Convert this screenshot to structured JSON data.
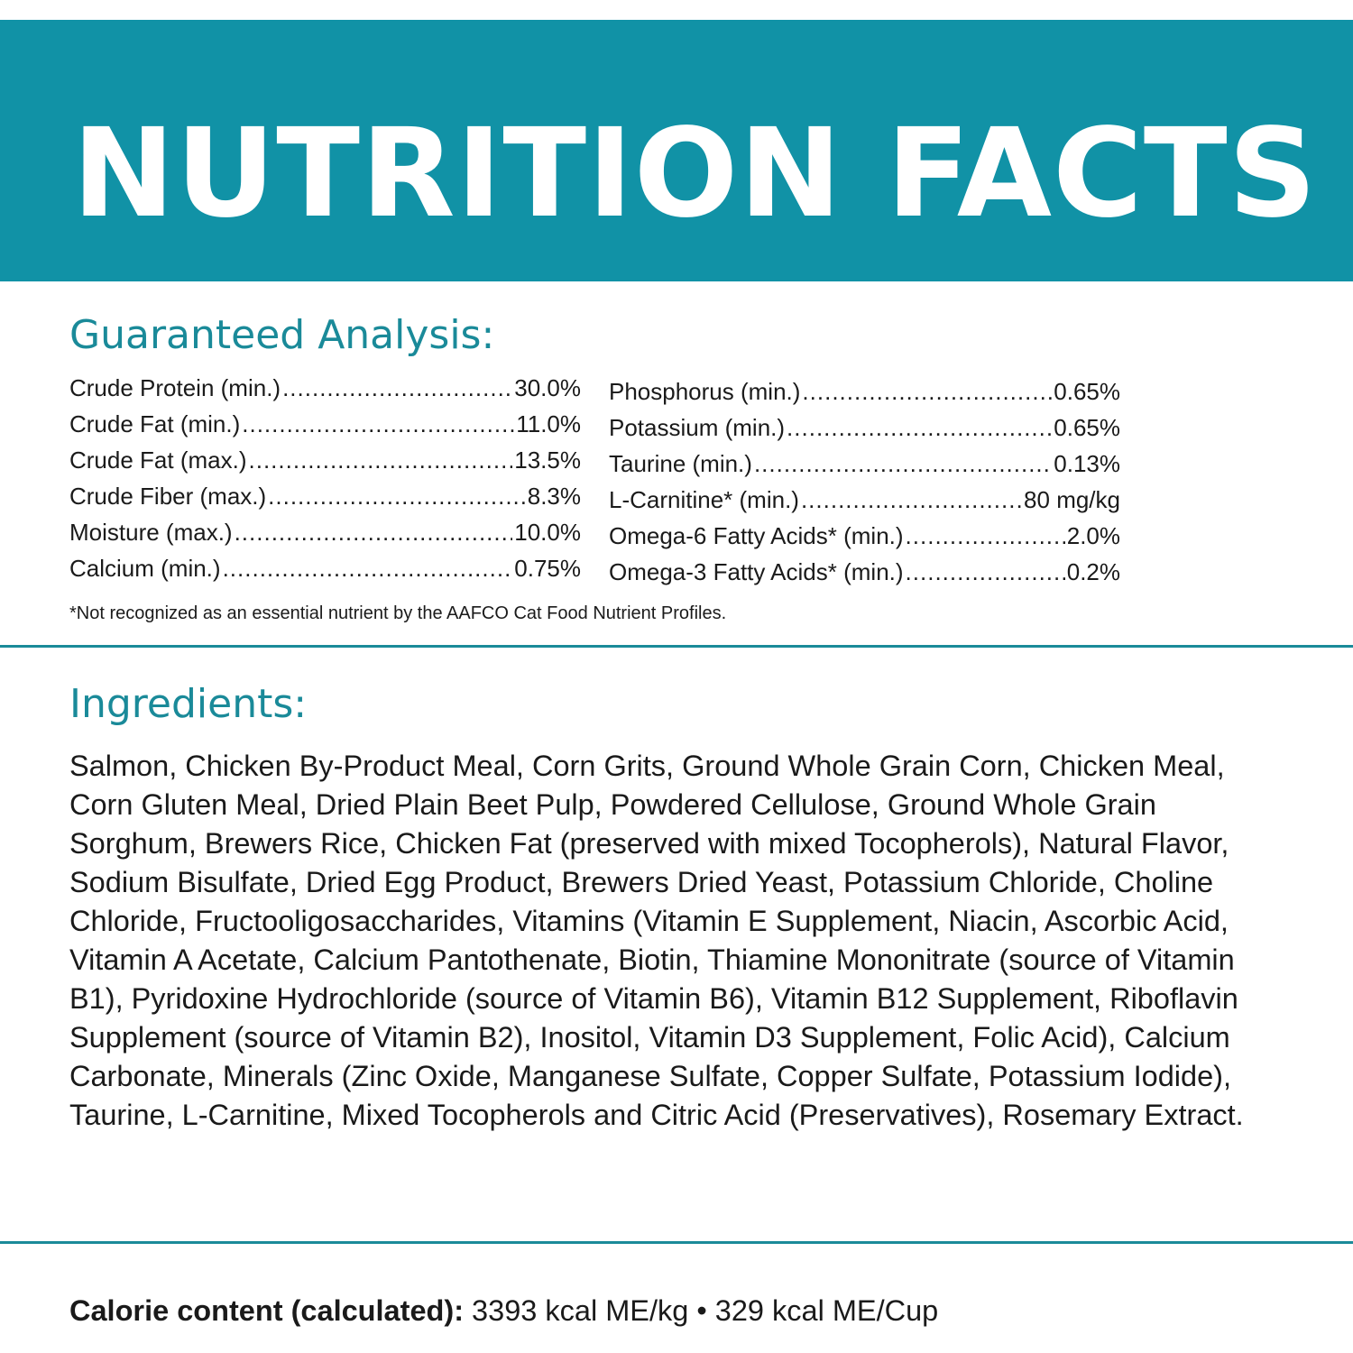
{
  "banner": {
    "title": "NUTRITION FACTS",
    "color": "#1192a6"
  },
  "guaranteed_analysis": {
    "title": "Guaranteed Analysis:",
    "left": [
      {
        "name": "Crude Protein (min.)",
        "value": "30.0%"
      },
      {
        "name": "Crude Fat (min.)",
        "value": "11.0%"
      },
      {
        "name": "Crude Fat (max.)",
        "value": "13.5%"
      },
      {
        "name": "Crude Fiber (max.)",
        "value": "8.3%"
      },
      {
        "name": "Moisture (max.)",
        "value": "10.0%"
      },
      {
        "name": "Calcium (min.)",
        "value": "0.75%"
      }
    ],
    "right": [
      {
        "name": "Phosphorus (min.)",
        "value": "0.65%"
      },
      {
        "name": "Potassium (min.)",
        "value": "0.65%"
      },
      {
        "name": "Taurine (min.)",
        "value": "0.13%"
      },
      {
        "name": "L-Carnitine* (min.)",
        "value": "80 mg/kg"
      },
      {
        "name": "Omega-6 Fatty Acids* (min.)",
        "value": "2.0%"
      },
      {
        "name": "Omega-3 Fatty Acids* (min.)",
        "value": "0.2%"
      }
    ],
    "footnote": "*Not recognized as an essential nutrient by the AAFCO Cat Food Nutrient Profiles."
  },
  "ingredients": {
    "title": "Ingredients:",
    "text": "Salmon, Chicken By-Product Meal, Corn Grits, Ground Whole Grain Corn, Chicken Meal, Corn Gluten Meal, Dried Plain Beet Pulp, Powdered Cellulose, Ground Whole Grain Sorghum, Brewers Rice, Chicken Fat (preserved with mixed Tocopherols), Natural Flavor, Sodium Bisulfate, Dried Egg Product, Brewers Dried Yeast, Potassium Chloride, Choline Chloride, Fructooligosaccharides, Vitamins (Vitamin E Supplement, Niacin, Ascorbic Acid, Vitamin A Acetate, Calcium Pantothenate, Biotin, Thiamine Mononitrate (source of Vitamin B1), Pyridoxine Hydrochloride (source of Vitamin B6), Vitamin B12 Supplement, Riboflavin Supplement (source of Vitamin B2), Inositol, Vitamin D3 Supplement, Folic Acid), Calcium Carbonate, Minerals (Zinc Oxide, Manganese Sulfate, Copper Sulfate, Potassium Iodide), Taurine, L-Carnitine, Mixed Tocopherols and Citric Acid (Preservatives), Rosemary Extract."
  },
  "calorie": {
    "label": "Calorie content (calculated):",
    "value": " 3393 kcal ME/kg • 329 kcal ME/Cup"
  },
  "accent_color": "#1a8a99"
}
